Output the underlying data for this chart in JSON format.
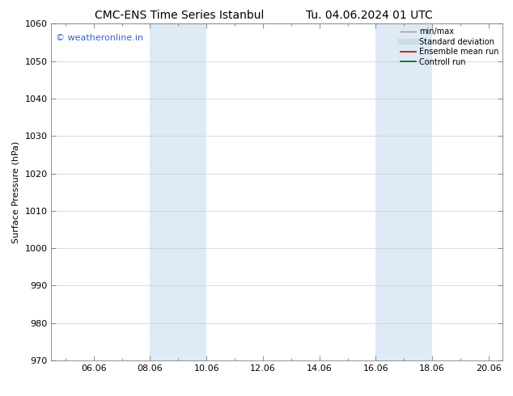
{
  "title_left": "CMC-ENS Time Series Istanbul",
  "title_right": "Tu. 04.06.2024 01 UTC",
  "ylabel": "Surface Pressure (hPa)",
  "ylim": [
    970,
    1060
  ],
  "yticks": [
    970,
    980,
    990,
    1000,
    1010,
    1020,
    1030,
    1040,
    1050,
    1060
  ],
  "xlim_start": 4.5,
  "xlim_end": 20.5,
  "xtick_labels": [
    "06.06",
    "08.06",
    "10.06",
    "12.06",
    "14.06",
    "16.06",
    "18.06",
    "20.06"
  ],
  "xtick_positions": [
    6,
    8,
    10,
    12,
    14,
    16,
    18,
    20
  ],
  "shaded_bands": [
    {
      "x_start": 8.0,
      "x_end": 10.0
    },
    {
      "x_start": 16.0,
      "x_end": 18.0
    }
  ],
  "shaded_color": "#deeaf5",
  "watermark_text": "© weatheronline.in",
  "watermark_color": "#3366cc",
  "watermark_fontsize": 8,
  "legend_items": [
    {
      "label": "min/max",
      "color": "#999999",
      "lw": 1.0,
      "linestyle": "-"
    },
    {
      "label": "Standard deviation",
      "color": "#c8dcea",
      "lw": 5,
      "linestyle": "-"
    },
    {
      "label": "Ensemble mean run",
      "color": "#cc0000",
      "lw": 1.2,
      "linestyle": "-"
    },
    {
      "label": "Controll run",
      "color": "#006600",
      "lw": 1.2,
      "linestyle": "-"
    }
  ],
  "bg_color": "#ffffff",
  "grid_color": "#cccccc",
  "title_fontsize": 10,
  "axis_fontsize": 8,
  "tick_fontsize": 8
}
